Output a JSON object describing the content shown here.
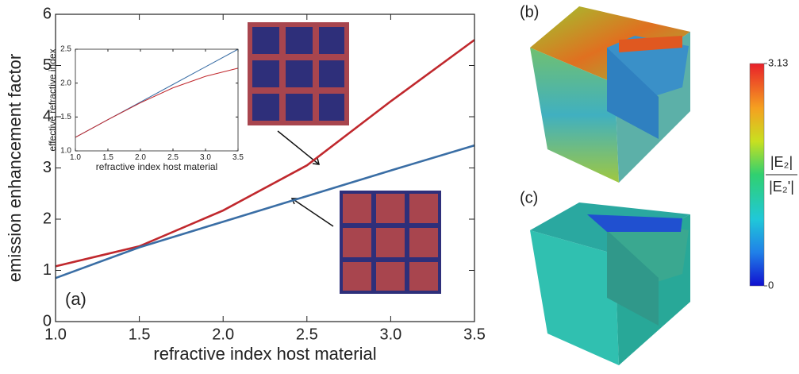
{
  "chart_data": [
    {
      "type": "line",
      "xlabel": "refractive index host material",
      "ylabel": "emission enhancement factor",
      "annotation": "(a)",
      "x": [
        1.0,
        1.5,
        2.0,
        2.5,
        3.0,
        3.5
      ],
      "xlim": [
        1.0,
        3.5
      ],
      "xticks": [
        {
          "value": 1.0,
          "label": "1.0"
        },
        {
          "value": 1.5,
          "label": "1.5"
        },
        {
          "value": 2.0,
          "label": "2.0"
        },
        {
          "value": 2.5,
          "label": "2.5"
        },
        {
          "value": 3.0,
          "label": "3.0"
        },
        {
          "value": 3.5,
          "label": "3.5"
        }
      ],
      "ylim": [
        0,
        6
      ],
      "yticks": [
        0,
        1,
        2,
        3,
        4,
        5,
        6
      ],
      "series": [
        {
          "color": "#c0282d",
          "values": [
            1.08,
            1.47,
            2.17,
            3.05,
            4.3,
            5.5
          ]
        },
        {
          "color": "#3a6ea5",
          "values": [
            0.85,
            1.45,
            1.95,
            2.45,
            2.95,
            3.44
          ]
        }
      ]
    },
    {
      "type": "line",
      "xlabel": "refractive index host material",
      "ylabel": "effective refractive index",
      "x": [
        1.0,
        1.5,
        2.0,
        2.5,
        3.0,
        3.5
      ],
      "xlim": [
        1.0,
        3.5
      ],
      "xticks": [
        {
          "value": 1.0,
          "label": "1.0"
        },
        {
          "value": 1.5,
          "label": "1.5"
        },
        {
          "value": 2.0,
          "label": "2.0"
        },
        {
          "value": 2.5,
          "label": "2.5"
        },
        {
          "value": 3.0,
          "label": "3.0"
        },
        {
          "value": 3.5,
          "label": "3.5"
        }
      ],
      "ylim": [
        1.0,
        2.5
      ],
      "yticks": [
        {
          "value": 1.0,
          "label": "1.0"
        },
        {
          "value": 1.5,
          "label": "1.5"
        },
        {
          "value": 2.0,
          "label": "2.0"
        },
        {
          "value": 2.5,
          "label": "2.5"
        }
      ],
      "series": [
        {
          "color": "#3a6ea5",
          "values": [
            1.2,
            1.46,
            1.72,
            1.98,
            2.24,
            2.5
          ]
        },
        {
          "color": "#c0282d",
          "values": [
            1.2,
            1.46,
            1.71,
            1.93,
            2.1,
            2.22
          ]
        }
      ]
    }
  ],
  "panels": {
    "b": "(b)",
    "c": "(c)"
  },
  "colorbar": {
    "ticks": [
      {
        "value": 3.13,
        "label": "3.13"
      },
      0
    ],
    "label_top": "|E₂|",
    "label_bottom": "|E₂'|"
  }
}
